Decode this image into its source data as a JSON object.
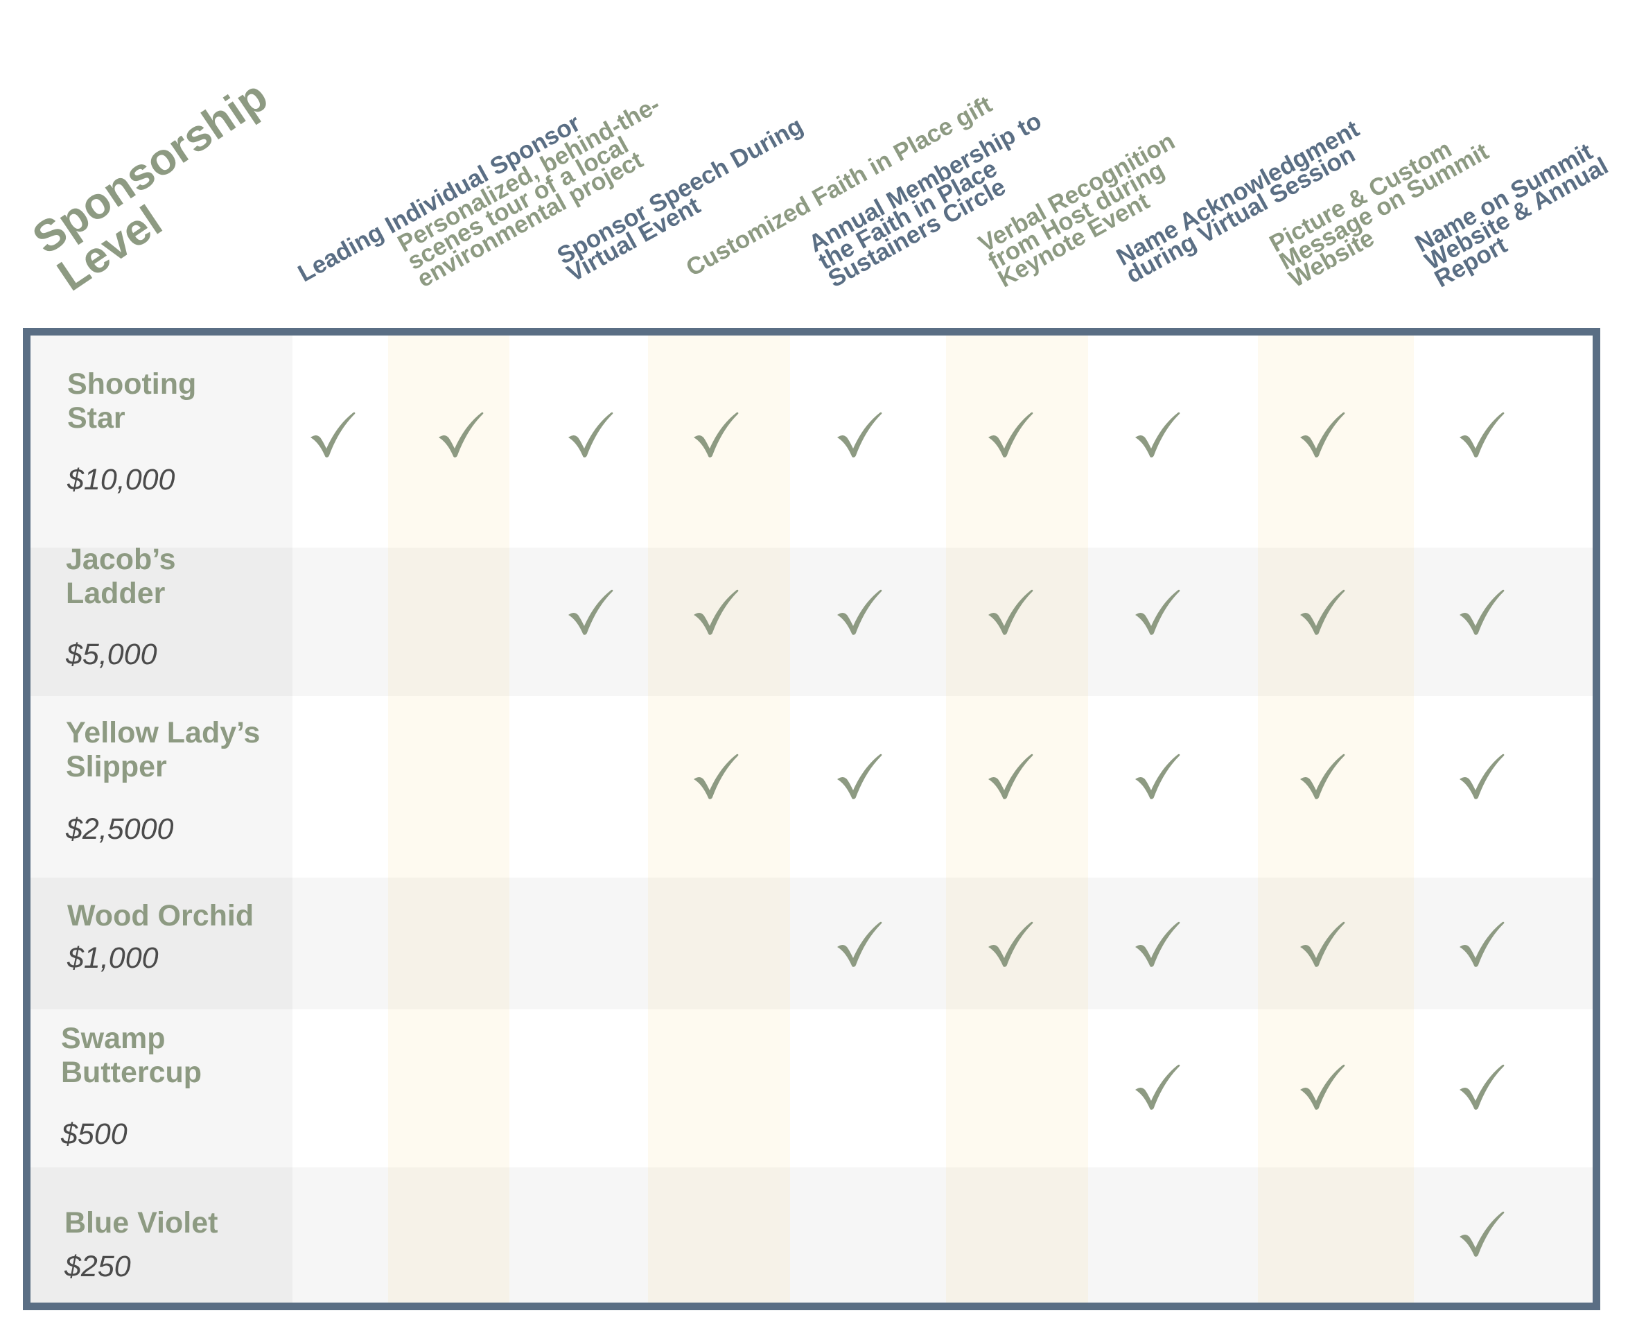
{
  "title": "Sponsorship\nLevel",
  "colors": {
    "frame": "#5a6e84",
    "check": "#8d9a82",
    "level_name": "#8d9a82",
    "price": "#4b4b4b",
    "header_slate": "#5a6e84",
    "header_sage": "#8d9a82"
  },
  "check_icon": "checkmark-icon",
  "benefits": [
    {
      "label": "Leading Individual Sponsor",
      "color": "slate"
    },
    {
      "label": "Personalized, behind-the-\nscenes tour of a local\nenvironmental project",
      "color": "sage"
    },
    {
      "label": "Sponsor Speech During\nVirtual Event",
      "color": "slate"
    },
    {
      "label": "Customized Faith in Place gift",
      "color": "sage"
    },
    {
      "label": "Annual Membership to\nthe Faith in Place\nSustainers Circle",
      "color": "slate"
    },
    {
      "label": "Verbal Recognition\nfrom Host during\nKeynote Event",
      "color": "sage"
    },
    {
      "label": "Name Acknowledgment\nduring Virtual Session",
      "color": "slate"
    },
    {
      "label": "Picture & Custom\nMessage on Summit\nWebsite",
      "color": "sage"
    },
    {
      "label": "Name on Summit\nWebsite & Annual\nReport",
      "color": "slate"
    }
  ],
  "levels": [
    {
      "name": "Shooting\nStar",
      "price": "$10,000",
      "checks": [
        true,
        true,
        true,
        true,
        true,
        true,
        true,
        true,
        true
      ]
    },
    {
      "name": "Jacob’s\nLadder",
      "price": "$5,000",
      "checks": [
        false,
        false,
        true,
        true,
        true,
        true,
        true,
        true,
        true
      ]
    },
    {
      "name": "Yellow Lady’s\nSlipper",
      "price": "$2,5000",
      "checks": [
        false,
        false,
        false,
        true,
        true,
        true,
        true,
        true,
        true
      ]
    },
    {
      "name": "Wood Orchid",
      "price": "$1,000",
      "checks": [
        false,
        false,
        false,
        false,
        true,
        true,
        true,
        true,
        true
      ]
    },
    {
      "name": "Swamp\nButtercup",
      "price": "$500",
      "checks": [
        false,
        false,
        false,
        false,
        false,
        false,
        true,
        true,
        true
      ]
    },
    {
      "name": "Blue Violet",
      "price": "$250",
      "checks": [
        false,
        false,
        false,
        false,
        false,
        false,
        false,
        false,
        true
      ]
    }
  ]
}
